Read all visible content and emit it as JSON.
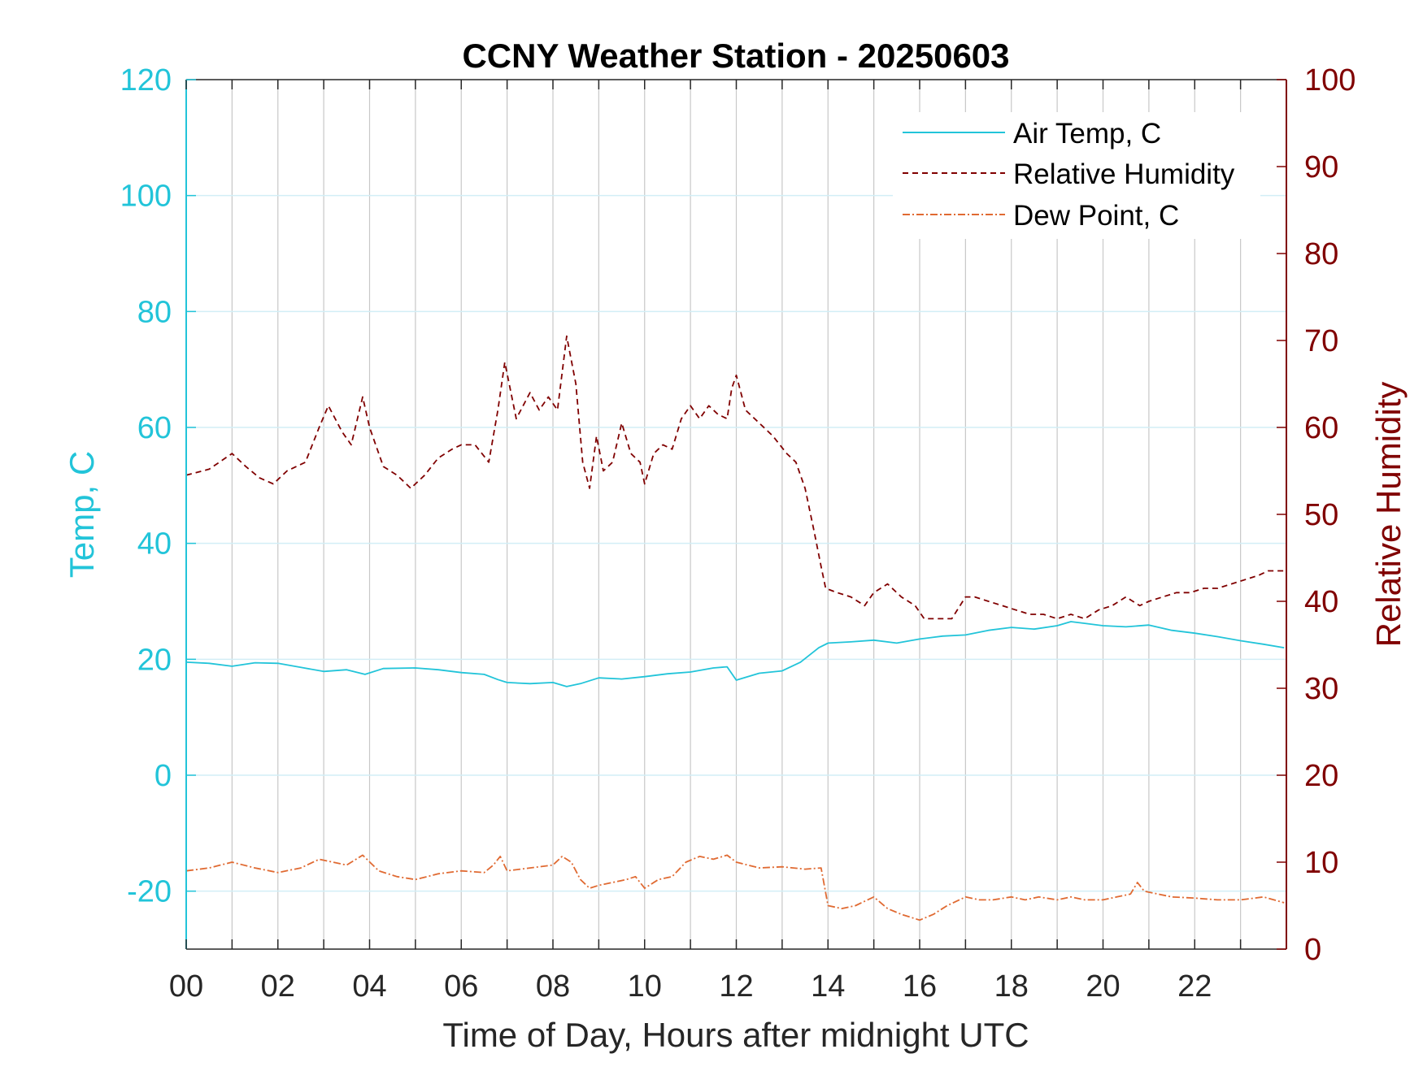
{
  "colors": {
    "temp": "#22c4d9",
    "humidity": "#800000",
    "dewpoint": "#e06a32",
    "hgrid": "#d2eef6",
    "vgrid": "#c8c8c8",
    "text": "#262626",
    "axis": "#262626"
  },
  "chart_data": {
    "type": "line",
    "title": "CCNY Weather Station - 20250603",
    "xlabel": "Time of Day, Hours after midnight UTC",
    "ylabel_left": "Temp, C",
    "ylabel_right": "Relative Humidity",
    "xlim": [
      0,
      24
    ],
    "ylim_left": [
      -30,
      120
    ],
    "ylim_right": [
      0,
      100
    ],
    "x_ticks": [
      0,
      2,
      4,
      6,
      8,
      10,
      12,
      14,
      16,
      18,
      20,
      22
    ],
    "x_tick_labels": [
      "00",
      "02",
      "04",
      "06",
      "08",
      "10",
      "12",
      "14",
      "16",
      "18",
      "20",
      "22"
    ],
    "y_left_ticks": [
      -20,
      0,
      20,
      40,
      60,
      80,
      100,
      120
    ],
    "y_left_tick_labels": [
      "-20",
      "0",
      "20",
      "40",
      "60",
      "80",
      "100",
      "120"
    ],
    "y_right_ticks": [
      0,
      10,
      20,
      30,
      40,
      50,
      60,
      70,
      80,
      90,
      100
    ],
    "y_right_tick_labels": [
      "0",
      "10",
      "20",
      "30",
      "40",
      "50",
      "60",
      "70",
      "80",
      "90",
      "100"
    ],
    "legend": [
      "Air Temp, C",
      "Relative Humidity",
      "Dew Point, C"
    ],
    "legend_position": "top-right",
    "grid": true,
    "series": [
      {
        "name": "Air Temp, C",
        "axis": "left",
        "style": "solid",
        "x": [
          0,
          0.5,
          1.0,
          1.5,
          2.0,
          2.5,
          3.0,
          3.5,
          3.9,
          4.3,
          5.0,
          5.5,
          6.0,
          6.5,
          6.8,
          7.0,
          7.5,
          8.0,
          8.3,
          8.6,
          9.0,
          9.5,
          10.0,
          10.5,
          11.0,
          11.5,
          11.8,
          12.0,
          12.5,
          13.0,
          13.4,
          13.8,
          14.0,
          14.5,
          15.0,
          15.5,
          16.0,
          16.5,
          17.0,
          17.5,
          18.0,
          18.5,
          19.0,
          19.3,
          19.6,
          20.0,
          20.5,
          21.0,
          21.5,
          22.0,
          22.5,
          23.0,
          23.5,
          23.95
        ],
        "y": [
          19.5,
          19.3,
          18.8,
          19.4,
          19.3,
          18.6,
          17.9,
          18.2,
          17.4,
          18.4,
          18.5,
          18.2,
          17.7,
          17.4,
          16.5,
          16.0,
          15.8,
          16.0,
          15.3,
          15.8,
          16.8,
          16.6,
          17.0,
          17.5,
          17.8,
          18.5,
          18.7,
          16.4,
          17.6,
          18.0,
          19.5,
          22.0,
          22.8,
          23.0,
          23.3,
          22.8,
          23.5,
          24.0,
          24.2,
          25.0,
          25.5,
          25.2,
          25.8,
          26.5,
          26.2,
          25.8,
          25.6,
          25.9,
          25.0,
          24.5,
          23.9,
          23.2,
          22.6,
          22.0
        ]
      },
      {
        "name": "Relative Humidity",
        "axis": "right",
        "style": "dashed",
        "x": [
          0,
          0.5,
          1.0,
          1.3,
          1.6,
          1.9,
          2.2,
          2.6,
          2.9,
          3.1,
          3.4,
          3.6,
          3.85,
          4.0,
          4.3,
          4.6,
          4.9,
          5.2,
          5.5,
          5.8,
          6.0,
          6.3,
          6.6,
          6.8,
          6.95,
          7.2,
          7.5,
          7.7,
          7.9,
          8.1,
          8.3,
          8.5,
          8.65,
          8.8,
          8.95,
          9.1,
          9.3,
          9.5,
          9.7,
          9.9,
          10.0,
          10.2,
          10.4,
          10.6,
          10.8,
          11.0,
          11.2,
          11.4,
          11.6,
          11.8,
          11.9,
          12.0,
          12.2,
          12.5,
          12.8,
          13.1,
          13.3,
          13.5,
          13.7,
          13.85,
          13.95,
          14.2,
          14.5,
          14.8,
          15.0,
          15.3,
          15.6,
          15.9,
          16.1,
          16.4,
          16.7,
          17.0,
          17.2,
          17.5,
          17.8,
          18.1,
          18.4,
          18.7,
          19.0,
          19.3,
          19.6,
          19.9,
          20.2,
          20.5,
          20.8,
          21.0,
          21.3,
          21.6,
          21.9,
          22.2,
          22.5,
          22.8,
          23.1,
          23.4,
          23.6,
          23.95
        ],
        "y": [
          54.5,
          55.2,
          57.0,
          55.5,
          54.2,
          53.5,
          55.0,
          56.0,
          60.0,
          62.5,
          59.5,
          58.0,
          63.5,
          60.0,
          55.5,
          54.5,
          53.0,
          54.5,
          56.5,
          57.5,
          58.0,
          58.0,
          56.0,
          62.0,
          67.5,
          61.0,
          64.0,
          62.0,
          63.5,
          62.0,
          70.5,
          65.0,
          56.0,
          53.0,
          59.0,
          55.0,
          56.0,
          60.5,
          57.0,
          56.0,
          53.5,
          57.0,
          58.0,
          57.5,
          61.0,
          62.5,
          61.0,
          62.5,
          61.5,
          61.0,
          64.5,
          66.0,
          62.0,
          60.5,
          59.0,
          57.0,
          56.0,
          53.0,
          48.0,
          44.0,
          41.5,
          41.0,
          40.5,
          39.5,
          41.0,
          42.0,
          40.5,
          39.5,
          38.0,
          38.0,
          38.0,
          40.5,
          40.5,
          40.0,
          39.5,
          39.0,
          38.5,
          38.5,
          38.0,
          38.5,
          38.0,
          39.0,
          39.5,
          40.5,
          39.5,
          40.0,
          40.5,
          41.0,
          41.0,
          41.5,
          41.5,
          42.0,
          42.5,
          43.0,
          43.5,
          43.5
        ]
      },
      {
        "name": "Dew Point, C",
        "axis": "left",
        "style": "dashdot",
        "x": [
          0,
          0.5,
          1.0,
          1.5,
          2.0,
          2.5,
          2.9,
          3.2,
          3.5,
          3.85,
          4.2,
          4.6,
          5.0,
          5.5,
          6.0,
          6.5,
          6.7,
          6.85,
          7.0,
          7.5,
          8.0,
          8.2,
          8.4,
          8.6,
          8.8,
          9.0,
          9.3,
          9.6,
          9.8,
          10.0,
          10.3,
          10.6,
          10.9,
          11.2,
          11.5,
          11.8,
          12.0,
          12.5,
          13.0,
          13.5,
          13.85,
          14.0,
          14.3,
          14.6,
          15.0,
          15.3,
          15.6,
          16.0,
          16.3,
          16.6,
          17.0,
          17.3,
          17.6,
          18.0,
          18.3,
          18.6,
          19.0,
          19.3,
          19.6,
          20.0,
          20.3,
          20.6,
          20.75,
          20.9,
          21.2,
          21.5,
          22.0,
          22.5,
          23.0,
          23.5,
          23.95
        ],
        "y": [
          -16.5,
          -16.0,
          -15.0,
          -16.0,
          -16.8,
          -16.0,
          -14.5,
          -15.0,
          -15.5,
          -13.8,
          -16.5,
          -17.5,
          -18.0,
          -17.0,
          -16.5,
          -16.8,
          -15.5,
          -14.0,
          -16.5,
          -16.0,
          -15.5,
          -14.0,
          -15.0,
          -18.0,
          -19.5,
          -19.0,
          -18.5,
          -18.0,
          -17.5,
          -19.5,
          -18.0,
          -17.5,
          -15.0,
          -14.0,
          -14.5,
          -13.8,
          -15.0,
          -16.0,
          -15.8,
          -16.2,
          -16.0,
          -22.5,
          -23.0,
          -22.5,
          -21.0,
          -23.0,
          -24.0,
          -25.0,
          -24.0,
          -22.5,
          -21.0,
          -21.5,
          -21.5,
          -21.0,
          -21.5,
          -21.0,
          -21.5,
          -21.0,
          -21.5,
          -21.5,
          -21.0,
          -20.5,
          -18.5,
          -20.0,
          -20.5,
          -21.0,
          -21.2,
          -21.5,
          -21.5,
          -21.0,
          -22.0
        ]
      }
    ]
  }
}
